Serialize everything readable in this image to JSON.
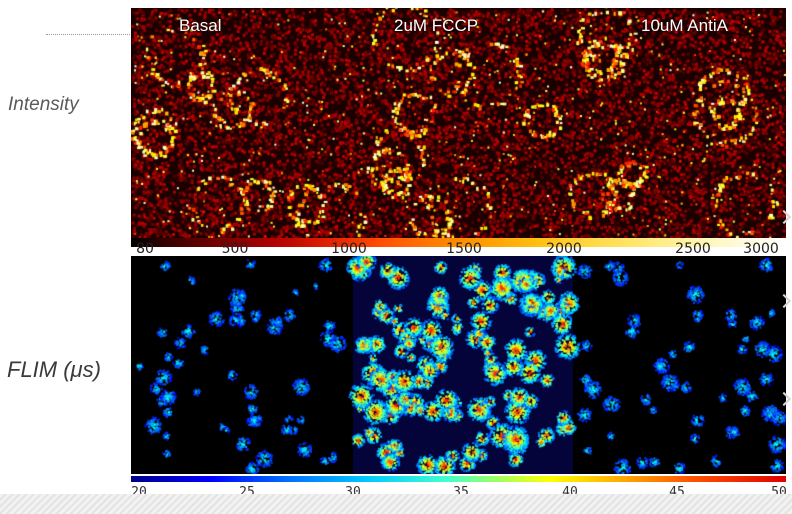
{
  "row_labels": {
    "intensity": "Intensity",
    "flim": "FLIM (μs)"
  },
  "conditions": [
    "Basal",
    "2uM FCCP",
    "10uM AntiA"
  ],
  "intensity_colorbar": {
    "colormap": "hot",
    "ticks": [
      "80",
      "500",
      "1000",
      "1500",
      "2000",
      "2500",
      "3000"
    ]
  },
  "flim_colorbar": {
    "colormap": "jet",
    "ticks": [
      "20",
      "25",
      "30",
      "35",
      "40",
      "45",
      "50"
    ]
  },
  "colors": {
    "background": "#ffffff",
    "panel_background": "#000000",
    "label_text": "#5a5a5a"
  }
}
